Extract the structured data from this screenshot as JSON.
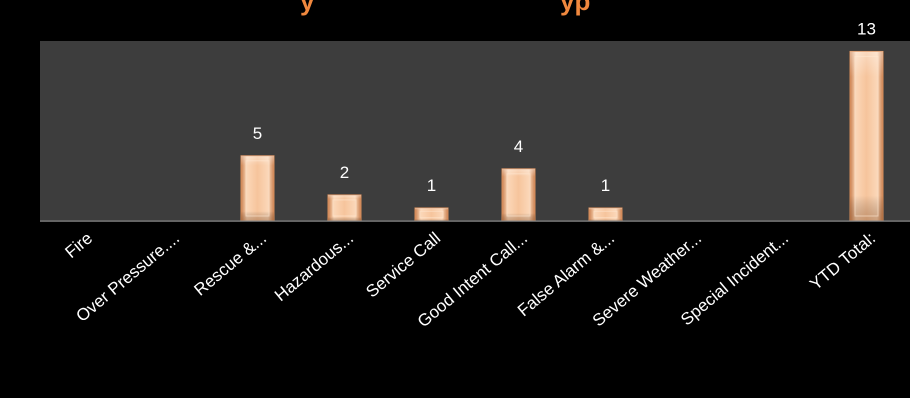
{
  "chart_data": {
    "type": "bar",
    "categories": [
      "Fire",
      "Over Pressure....",
      "Rescue &...",
      "Hazardous...",
      "Service Call",
      "Good Intent Call...",
      "False Alarm &...",
      "Severe Weather...",
      "Special Incident...",
      "YTD Total:"
    ],
    "values": [
      0,
      0,
      5,
      2,
      1,
      4,
      1,
      0,
      0,
      13
    ],
    "data_labels": [
      "",
      "",
      "5",
      "2",
      "1",
      "4",
      "1",
      "",
      "",
      "13"
    ],
    "ylim": [
      0,
      13.8
    ],
    "grid": false,
    "legend": "none",
    "colors": {
      "background": "#000000",
      "plot_area": "#3d3d3d",
      "bar_fill": "#f6c49c",
      "bar_edge": "#d98f5c",
      "title": "#f0883e",
      "text": "#ffffff"
    }
  }
}
